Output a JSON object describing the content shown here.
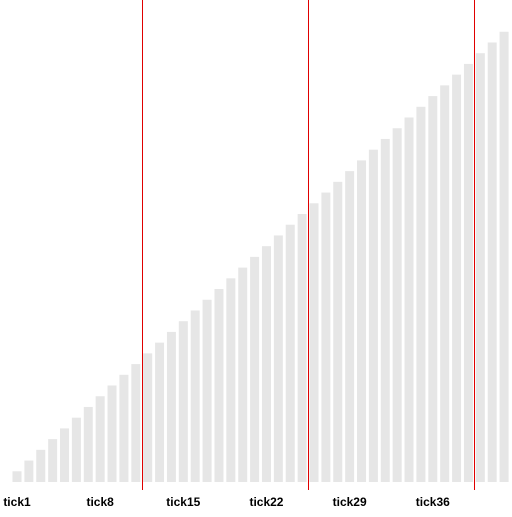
{
  "chart_data": {
    "type": "bar",
    "categories": [
      "tick1",
      null,
      null,
      null,
      null,
      null,
      null,
      "tick8",
      null,
      null,
      null,
      null,
      null,
      null,
      "tick15",
      null,
      null,
      null,
      null,
      null,
      null,
      "tick22",
      null,
      null,
      null,
      null,
      null,
      null,
      "tick29",
      null,
      null,
      null,
      null,
      null,
      null,
      "tick36",
      null,
      null,
      null,
      null,
      null,
      null
    ],
    "values": [
      1,
      2,
      3,
      4,
      5,
      6,
      7,
      8,
      9,
      10,
      11,
      12,
      13,
      14,
      15,
      16,
      17,
      18,
      19,
      20,
      21,
      22,
      23,
      24,
      25,
      26,
      27,
      28,
      29,
      30,
      31,
      32,
      33,
      34,
      35,
      36,
      37,
      38,
      39,
      40,
      41,
      42
    ],
    "color": "#e6e6e6"
  }
}
